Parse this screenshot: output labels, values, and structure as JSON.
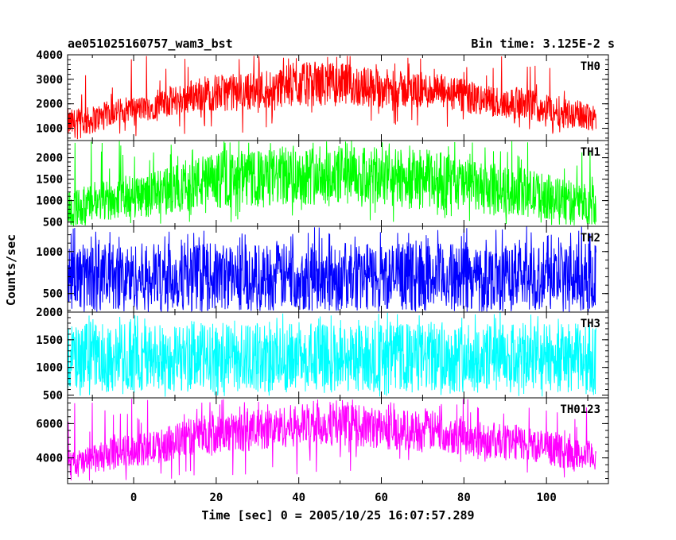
{
  "header": {
    "title": "ae051025160757_wam3_bst",
    "bin_time": "Bin time: 3.125E-2 s"
  },
  "axes": {
    "xlabel": "Time [sec] 0 = 2005/10/25 16:07:57.289",
    "ylabel": "Counts/sec"
  },
  "chart_data": {
    "type": "line",
    "title": "ae051025160757_wam3_bst",
    "subtitle": "Bin time: 3.125E-2 s",
    "xlabel": "Time [sec] 0 = 2005/10/25 16:07:57.289",
    "ylabel": "Counts/sec",
    "xlim": [
      -16,
      115
    ],
    "x_range_of_data": [
      -16,
      112
    ],
    "x_ticks": [
      0,
      20,
      40,
      60,
      80,
      100
    ],
    "x_tick_labels": [
      "0",
      "20",
      "40",
      "60",
      "80",
      "100"
    ],
    "bin_time_s": 0.03125,
    "grid": false,
    "legend": "none",
    "series": [
      {
        "name": "TH0",
        "color": "#ff0000",
        "ylim": [
          500,
          4000
        ],
        "y_ticks": [
          1000,
          2000,
          3000,
          4000
        ],
        "y_tick_labels": [
          "1000",
          "2000",
          "3000",
          "4000"
        ],
        "envelope_t": [
          -15,
          0,
          20,
          45,
          70,
          90,
          112
        ],
        "envelope_low": [
          600,
          1300,
          1700,
          1900,
          1800,
          1400,
          900
        ],
        "envelope_high": [
          1800,
          2300,
          3200,
          3700,
          3300,
          2700,
          2100
        ],
        "spikes_to": 4000
      },
      {
        "name": "TH1",
        "color": "#00ff00",
        "ylim": [
          400,
          2400
        ],
        "y_ticks": [
          500,
          1000,
          1500,
          2000
        ],
        "y_tick_labels": [
          "500",
          "1000",
          "1500",
          "2000"
        ],
        "envelope_t": [
          -15,
          0,
          20,
          45,
          70,
          90,
          112
        ],
        "envelope_low": [
          400,
          600,
          800,
          900,
          800,
          650,
          450
        ],
        "envelope_high": [
          1300,
          1600,
          2100,
          2300,
          2200,
          1800,
          1400
        ],
        "spikes_to": 2400
      },
      {
        "name": "TH2",
        "color": "#0000ff",
        "ylim": [
          280,
          1300
        ],
        "y_ticks": [
          500,
          1000
        ],
        "y_tick_labels": [
          "500",
          "1000"
        ],
        "envelope_t": [
          -15,
          112
        ],
        "envelope_low": [
          300,
          300
        ],
        "envelope_high": [
          1100,
          1100
        ],
        "spikes_to": 1300
      },
      {
        "name": "TH3",
        "color": "#00ffff",
        "ylim": [
          450,
          2000
        ],
        "y_ticks": [
          500,
          1000,
          1500,
          2000
        ],
        "y_tick_labels": [
          "500",
          "1000",
          "1500",
          "2000"
        ],
        "envelope_t": [
          -15,
          112
        ],
        "envelope_low": [
          550,
          550
        ],
        "envelope_high": [
          1800,
          1800
        ],
        "spikes_to": 2000
      },
      {
        "name": "TH0123",
        "color": "#ff00ff",
        "ylim": [
          2500,
          7500
        ],
        "y_ticks": [
          4000,
          6000
        ],
        "y_tick_labels": [
          "4000",
          "6000"
        ],
        "envelope_t": [
          -15,
          0,
          20,
          45,
          70,
          90,
          112
        ],
        "envelope_low": [
          2800,
          3500,
          4300,
          4700,
          4400,
          3900,
          3200
        ],
        "envelope_high": [
          4500,
          5400,
          6600,
          7200,
          6800,
          6000,
          5000
        ],
        "spikes_to": 7500
      }
    ]
  }
}
